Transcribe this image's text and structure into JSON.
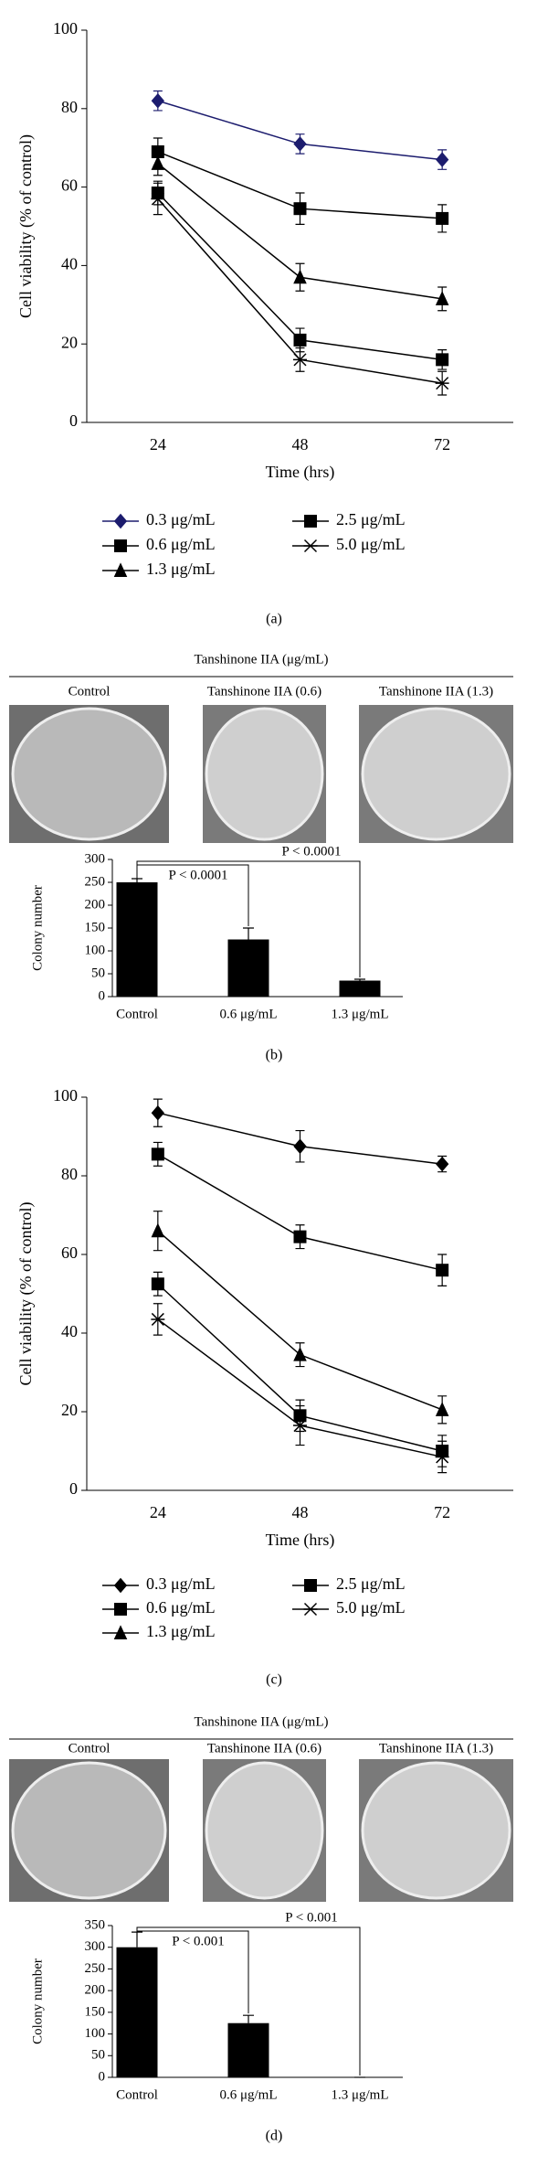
{
  "chart_data": [
    {
      "type": "line",
      "panel_label": "(a)",
      "xlabel": "Time (hrs)",
      "ylabel": "Cell viability (% of control)",
      "categories": [
        "24",
        "48",
        "72"
      ],
      "ylim": [
        0,
        100
      ],
      "yticks": [
        0,
        20,
        40,
        60,
        80,
        100
      ],
      "series": [
        {
          "name": "0.3 μg/mL",
          "color": "#1c1c6e",
          "marker": "diamond",
          "values": [
            82,
            71,
            67
          ],
          "errors": [
            2.5,
            2.5,
            2.5
          ]
        },
        {
          "name": "0.6 μg/mL",
          "color": "#000000",
          "marker": "square",
          "values": [
            69,
            54.5,
            52
          ],
          "errors": [
            3.5,
            4,
            3.5
          ]
        },
        {
          "name": "1.3 μg/mL",
          "color": "#000000",
          "marker": "triangle",
          "values": [
            66,
            37,
            31.5
          ],
          "errors": [
            3,
            3.5,
            3
          ]
        },
        {
          "name": "2.5 μg/mL",
          "color": "#000000",
          "marker": "square",
          "values": [
            58.5,
            21,
            16
          ],
          "errors": [
            3,
            3,
            2.5
          ]
        },
        {
          "name": "5.0 μg/mL",
          "color": "#000000",
          "marker": "asterisk",
          "values": [
            57,
            16,
            10
          ],
          "errors": [
            4,
            3,
            3
          ]
        }
      ]
    },
    {
      "type": "bar",
      "panel_label": "(b)",
      "header": "Tanshinone IIA (μg/mL)",
      "photo_labels": [
        "Control",
        "Tanshinone IIA (0.6)",
        "Tanshinone IIA (1.3)"
      ],
      "ylabel": "Colony number",
      "categories": [
        "Control",
        "0.6 μg/mL",
        "1.3 μg/mL"
      ],
      "values": [
        250,
        125,
        35
      ],
      "errors": [
        8,
        25,
        3
      ],
      "color": "#000000",
      "ylim": [
        0,
        300
      ],
      "yticks": [
        0,
        50,
        100,
        150,
        200,
        250,
        300
      ],
      "annotations": [
        "P < 0.0001",
        "P < 0.0001"
      ]
    },
    {
      "type": "line",
      "panel_label": "(c)",
      "xlabel": "Time (hrs)",
      "ylabel": "Cell viability (% of control)",
      "categories": [
        "24",
        "48",
        "72"
      ],
      "ylim": [
        0,
        100
      ],
      "yticks": [
        0,
        20,
        40,
        60,
        80,
        100
      ],
      "series": [
        {
          "name": "0.3 μg/mL",
          "color": "#000000",
          "marker": "diamond",
          "values": [
            96,
            87.5,
            83
          ],
          "errors": [
            3.5,
            4,
            2
          ]
        },
        {
          "name": "0.6 μg/mL",
          "color": "#000000",
          "marker": "square",
          "values": [
            85.5,
            64.5,
            56
          ],
          "errors": [
            3,
            3,
            4
          ]
        },
        {
          "name": "1.3 μg/mL",
          "color": "#000000",
          "marker": "triangle",
          "values": [
            66,
            34.5,
            20.5
          ],
          "errors": [
            5,
            3,
            3.5
          ]
        },
        {
          "name": "2.5 μg/mL",
          "color": "#000000",
          "marker": "square",
          "values": [
            52.5,
            19,
            10
          ],
          "errors": [
            3,
            4,
            4
          ]
        },
        {
          "name": "5.0 μg/mL",
          "color": "#000000",
          "marker": "asterisk",
          "values": [
            43.5,
            16.5,
            8.5
          ],
          "errors": [
            4,
            5,
            4
          ]
        }
      ]
    },
    {
      "type": "bar",
      "panel_label": "(d)",
      "header": "Tanshinone IIA (μg/mL)",
      "photo_labels": [
        "Control",
        "Tanshinone IIA (0.6)",
        "Tanshinone IIA (1.3)"
      ],
      "ylabel": "Colony number",
      "categories": [
        "Control",
        "0.6 μg/mL",
        "1.3 μg/mL"
      ],
      "values": [
        300,
        125,
        0
      ],
      "errors": [
        35,
        18,
        0
      ],
      "color": "#000000",
      "ylim": [
        0,
        350
      ],
      "yticks": [
        0,
        50,
        100,
        150,
        200,
        250,
        300,
        350
      ],
      "annotations": [
        "P < 0.001",
        "P < 0.001"
      ]
    }
  ]
}
